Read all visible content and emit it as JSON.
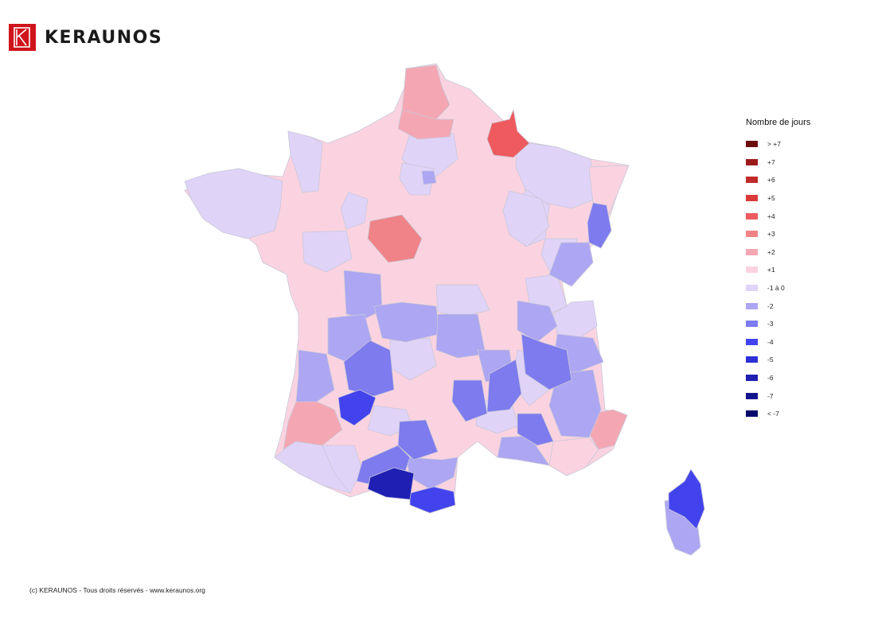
{
  "brand": {
    "name": "KERAUNOS",
    "logo_color": "#d0141b"
  },
  "legend": {
    "title": "Nombre de jours",
    "items": [
      {
        "label": "> +7",
        "color": "#6b0d0d"
      },
      {
        "label": "+7",
        "color": "#9b1b1b"
      },
      {
        "label": "+6",
        "color": "#c12a2a"
      },
      {
        "label": "+5",
        "color": "#da3a3a"
      },
      {
        "label": "+4",
        "color": "#ee5a5e"
      },
      {
        "label": "+3",
        "color": "#f08387"
      },
      {
        "label": "+2",
        "color": "#f4a7b3"
      },
      {
        "label": "+1",
        "color": "#fbd3e0"
      },
      {
        "label": "-1 à 0",
        "color": "#e0d3f8"
      },
      {
        "label": "-2",
        "color": "#ada6f2"
      },
      {
        "label": "-3",
        "color": "#7d7bee"
      },
      {
        "label": "-4",
        "color": "#4343ee"
      },
      {
        "label": "-5",
        "color": "#2e2ed8"
      },
      {
        "label": "-6",
        "color": "#1f1fb4"
      },
      {
        "label": "-7",
        "color": "#14148e"
      },
      {
        "label": "< -7",
        "color": "#0a0a6b"
      }
    ]
  },
  "footer": {
    "copyright": "(c) KERAUNOS - Tous droits réservés - www.keraunos.org"
  }
}
